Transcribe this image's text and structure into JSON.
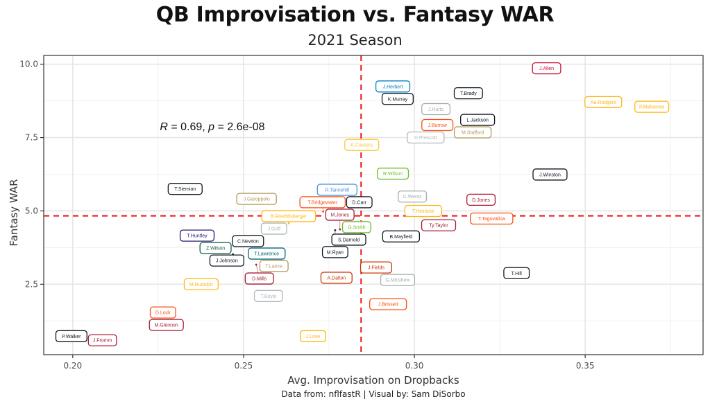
{
  "chart_data": {
    "type": "scatter",
    "title": "QB Improvisation vs. Fantasy WAR",
    "subtitle": "2021 Season",
    "xlabel": "Avg. Improvisation on Dropbacks",
    "ylabel": "Fantasy WAR",
    "caption": "Data from: nflfastR | Visual by: Sam DiSorbo",
    "xlim": [
      0.1915,
      0.3845
    ],
    "ylim": [
      0.1,
      10.3
    ],
    "x_ticks": [
      0.2,
      0.25,
      0.3,
      0.35
    ],
    "x_tick_labels": [
      "0.20",
      "0.25",
      "0.30",
      "0.35"
    ],
    "y_ticks": [
      2.5,
      5.0,
      7.5,
      10.0
    ],
    "y_tick_labels": [
      "2.5",
      "5.0",
      "7.5",
      "10.0"
    ],
    "grid": true,
    "annotation": {
      "r_label": "R",
      "r_value": "0.69",
      "p_label": "p",
      "p_value": "2.6e-08",
      "x": 0.2255,
      "y": 7.75
    },
    "reference_lines": {
      "vertical_x": 0.2844,
      "horizontal_y": 4.83,
      "color": "#ee1111",
      "style": "dashed"
    },
    "points": [
      {
        "name": "P.Walker",
        "x": 0.2,
        "y": 0.73,
        "color": "#101820"
      },
      {
        "name": "J.Fromm",
        "x": 0.2083,
        "y": 0.59,
        "color": "#a71930"
      },
      {
        "name": "D.Lock",
        "x": 0.2264,
        "y": 1.43,
        "color": "#fb4f14"
      },
      {
        "name": "M.Glennon",
        "x": 0.2274,
        "y": 1.22,
        "color": "#a71930"
      },
      {
        "name": "T.Siemian",
        "x": 0.2329,
        "y": 5.75,
        "color": "#101820"
      },
      {
        "name": "T.Huntley",
        "x": 0.2364,
        "y": 4.04,
        "color": "#241773"
      },
      {
        "name": "M.Rudolph",
        "x": 0.2376,
        "y": 2.5,
        "color": "#ffb612"
      },
      {
        "name": "J.Johnson",
        "x": 0.2469,
        "y": 3.52,
        "color": "#101820"
      },
      {
        "name": "Z.Wilson",
        "x": 0.2429,
        "y": 3.64,
        "color": "#125740"
      },
      {
        "name": "T.Lawrence",
        "x": 0.2559,
        "y": 3.38,
        "color": "#006778"
      },
      {
        "name": "D.Mills",
        "x": 0.2537,
        "y": 3.17,
        "color": "#a71930"
      },
      {
        "name": "T.Lance",
        "x": 0.2589,
        "y": 3.17,
        "color": "#b3995d"
      },
      {
        "name": "C.Newton",
        "x": 0.2502,
        "y": 3.9,
        "color": "#101820"
      },
      {
        "name": "T.Boyle",
        "x": 0.2573,
        "y": 2.1,
        "color": "#b0b7bc"
      },
      {
        "name": "J.Goff",
        "x": 0.2589,
        "y": 4.51,
        "color": "#b0b7bc"
      },
      {
        "name": "B.Roethlisberger",
        "x": 0.2632,
        "y": 4.58,
        "color": "#ffb612"
      },
      {
        "name": "J.Garoppolo",
        "x": 0.2538,
        "y": 5.41,
        "color": "#b3995d"
      },
      {
        "name": "J.Love",
        "x": 0.2703,
        "y": 0.73,
        "color": "#ffb612"
      },
      {
        "name": "T.Bridgewater",
        "x": 0.2733,
        "y": 4.98,
        "color": "#fb4f14"
      },
      {
        "name": "M.Ryan",
        "x": 0.2768,
        "y": 4.34,
        "color": "#101820"
      },
      {
        "name": "A.Dalton",
        "x": 0.2772,
        "y": 2.72,
        "color": "#c83803"
      },
      {
        "name": "R.Tannehill",
        "x": 0.2774,
        "y": 5.43,
        "color": "#4b92db"
      },
      {
        "name": "M.Jones",
        "x": 0.2782,
        "y": 4.37,
        "color": "#a71930"
      },
      {
        "name": "S.Darnold",
        "x": 0.2808,
        "y": 4.18,
        "color": "#101820"
      },
      {
        "name": "G.Smith",
        "x": 0.2831,
        "y": 4.48,
        "color": "#69be28"
      },
      {
        "name": "D.Carr",
        "x": 0.2837,
        "y": 5.31,
        "color": "#101820"
      },
      {
        "name": "K.Cousins",
        "x": 0.2846,
        "y": 7.25,
        "color": "#ffc62f"
      },
      {
        "name": "J.Fields",
        "x": 0.2888,
        "y": 3.07,
        "color": "#c83803"
      },
      {
        "name": "J.Brissett",
        "x": 0.2923,
        "y": 1.82,
        "color": "#fc4c02"
      },
      {
        "name": "J.Herbert",
        "x": 0.2937,
        "y": 9.11,
        "color": "#0080c6"
      },
      {
        "name": "R.Wilson",
        "x": 0.2937,
        "y": 6.27,
        "color": "#69be28"
      },
      {
        "name": "K.Murray",
        "x": 0.2951,
        "y": 8.95,
        "color": "#101820"
      },
      {
        "name": "G.Minshew",
        "x": 0.2951,
        "y": 2.65,
        "color": "#a5acaf"
      },
      {
        "name": "B.Mayfield",
        "x": 0.2961,
        "y": 4.13,
        "color": "#101820"
      },
      {
        "name": "C.Wentz",
        "x": 0.2994,
        "y": 5.49,
        "color": "#a5acaf"
      },
      {
        "name": "T.Heinicke",
        "x": 0.3026,
        "y": 5.0,
        "color": "#ffb612"
      },
      {
        "name": "D.Prescott",
        "x": 0.3033,
        "y": 7.6,
        "color": "#b0b7bc"
      },
      {
        "name": "J.Hurts",
        "x": 0.3063,
        "y": 8.47,
        "color": "#a5acaf"
      },
      {
        "name": "Ty.Taylor",
        "x": 0.3071,
        "y": 4.51,
        "color": "#a71930"
      },
      {
        "name": "J.Burrow",
        "x": 0.3075,
        "y": 7.83,
        "color": "#fb4f14"
      },
      {
        "name": "T.Brady",
        "x": 0.3158,
        "y": 9.01,
        "color": "#101820"
      },
      {
        "name": "M.Stafford",
        "x": 0.3163,
        "y": 7.76,
        "color": "#b3995d"
      },
      {
        "name": "L.Jackson",
        "x": 0.3185,
        "y": 8.02,
        "color": "#101820"
      },
      {
        "name": "D.Jones",
        "x": 0.3195,
        "y": 5.38,
        "color": "#a71930"
      },
      {
        "name": "T.Tagovailoa",
        "x": 0.3226,
        "y": 4.74,
        "color": "#fc4c02"
      },
      {
        "name": "T.Hill",
        "x": 0.3299,
        "y": 2.88,
        "color": "#101820"
      },
      {
        "name": "J.Allen",
        "x": 0.3387,
        "y": 9.86,
        "color": "#c60c30"
      },
      {
        "name": "J.Winston",
        "x": 0.3397,
        "y": 6.24,
        "color": "#101820"
      },
      {
        "name": "Aa.Rodgers",
        "x": 0.3553,
        "y": 8.71,
        "color": "#ffb612"
      },
      {
        "name": "P.Mahomes",
        "x": 0.3695,
        "y": 8.55,
        "color": "#ffb612"
      }
    ]
  }
}
